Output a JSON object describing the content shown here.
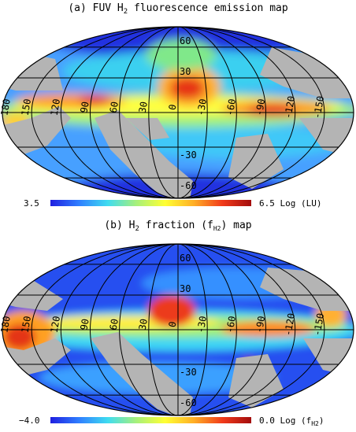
{
  "chart_data": [
    {
      "type": "heatmap",
      "projection": "mollweide",
      "title_prefix": "(a) FUV H",
      "title_sub": "2",
      "title_suffix": " fluorescence emission map",
      "longitude_labels": [
        "180",
        "150",
        "120",
        "90",
        "60",
        "30",
        "0",
        "-30",
        "-60",
        "-90",
        "-120",
        "-150"
      ],
      "latitude_labels": [
        "60",
        "30",
        "0",
        "-30",
        "-60"
      ],
      "colorbar": {
        "min_label": "3.5",
        "max_label": "6.5 Log (LU)",
        "range": [
          3.5,
          6.5
        ],
        "colors": [
          "#1f1fe0",
          "#2f7fff",
          "#3fdcf0",
          "#a7f07a",
          "#ffff33",
          "#ffae26",
          "#f13a1a",
          "#a30d0d"
        ]
      },
      "nodata_color": "#b4b4b4"
    },
    {
      "type": "heatmap",
      "projection": "mollweide",
      "title_prefix": "(b)  H",
      "title_sub": "2",
      "title_suffix_a": " fraction (f",
      "title_suffix_sub": "H2",
      "title_suffix_b": ") map",
      "longitude_labels": [
        "180",
        "150",
        "120",
        "90",
        "60",
        "30",
        "0",
        "-30",
        "-60",
        "-90",
        "-120",
        "-150"
      ],
      "latitude_labels": [
        "60",
        "30",
        "0",
        "-30",
        "-60"
      ],
      "colorbar": {
        "min_label": "−4.0",
        "max_label_a": "0.0 Log (f",
        "max_label_sub": "H2",
        "max_label_b": ")",
        "range": [
          -4.0,
          0.0
        ],
        "colors": [
          "#1f1fe0",
          "#2f7fff",
          "#3fdcf0",
          "#a7f07a",
          "#ffff33",
          "#ffae26",
          "#f13a1a",
          "#a30d0d"
        ]
      },
      "nodata_color": "#b4b4b4"
    }
  ]
}
